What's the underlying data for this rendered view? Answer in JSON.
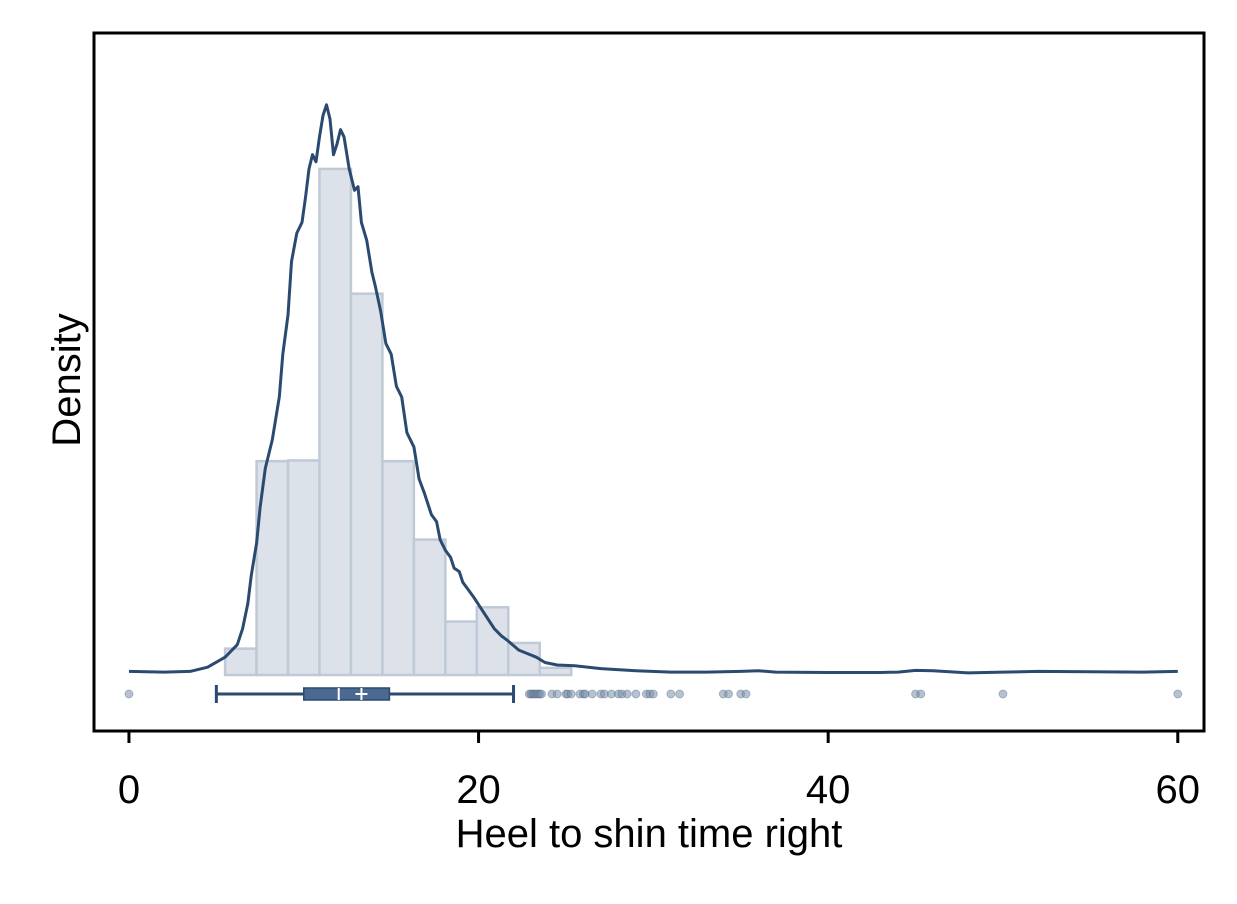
{
  "chart_data": {
    "type": "histogram",
    "title": "",
    "xlabel": "Heel to shin time right",
    "ylabel": "Density",
    "xlim": [
      -2,
      61.5
    ],
    "xticks": [
      0,
      20,
      40,
      60
    ],
    "xtick_labels": [
      "0",
      "20",
      "40",
      "60"
    ],
    "y_axis_ticks_shown": false,
    "grid": false,
    "legend": "none",
    "histogram": {
      "bin_edges": [
        5.5,
        7.3,
        9.1,
        10.9,
        12.7,
        14.5,
        16.3,
        18.1,
        19.9,
        21.7,
        23.5,
        25.3
      ],
      "density": [
        0.0074,
        0.06,
        0.0602,
        0.142,
        0.107,
        0.06,
        0.038,
        0.015,
        0.019,
        0.009,
        0.002
      ],
      "color": "#dde2ea",
      "edge_color": "#bfcad6"
    },
    "kde": {
      "x": [
        0,
        2,
        3.5,
        4.5,
        5.5,
        6.2,
        6.5,
        6.8,
        7.0,
        7.3,
        7.5,
        7.8,
        8.2,
        8.6,
        8.8,
        9.1,
        9.3,
        9.6,
        9.9,
        10.1,
        10.3,
        10.5,
        10.7,
        10.9,
        11.1,
        11.3,
        11.5,
        11.7,
        11.9,
        12.1,
        12.3,
        12.6,
        12.9,
        13.1,
        13.3,
        13.6,
        13.9,
        14.1,
        14.4,
        14.7,
        15.0,
        15.3,
        15.6,
        15.9,
        16.3,
        16.6,
        16.9,
        17.1,
        17.3,
        17.6,
        17.8,
        18.1,
        18.4,
        18.6,
        18.9,
        19.1,
        19.4,
        19.7,
        20.1,
        20.5,
        20.9,
        21.3,
        21.7,
        22.3,
        22.8,
        23.3,
        23.8,
        24.5,
        25.5,
        27,
        29,
        31,
        33,
        35,
        36,
        37,
        40,
        43,
        44,
        45,
        46,
        48,
        50,
        52,
        55,
        58,
        60
      ],
      "y": [
        0.001,
        0.0008,
        0.001,
        0.0022,
        0.005,
        0.0085,
        0.013,
        0.02,
        0.028,
        0.037,
        0.047,
        0.058,
        0.066,
        0.078,
        0.09,
        0.101,
        0.116,
        0.124,
        0.127,
        0.134,
        0.142,
        0.146,
        0.144,
        0.151,
        0.157,
        0.16,
        0.156,
        0.146,
        0.149,
        0.153,
        0.151,
        0.142,
        0.136,
        0.137,
        0.127,
        0.122,
        0.113,
        0.109,
        0.102,
        0.093,
        0.09,
        0.081,
        0.078,
        0.068,
        0.064,
        0.055,
        0.051,
        0.048,
        0.045,
        0.043,
        0.038,
        0.035,
        0.033,
        0.03,
        0.029,
        0.026,
        0.024,
        0.022,
        0.019,
        0.016,
        0.013,
        0.011,
        0.0095,
        0.007,
        0.006,
        0.005,
        0.0035,
        0.0028,
        0.0026,
        0.0018,
        0.0012,
        0.0008,
        0.0008,
        0.001,
        0.0012,
        0.0008,
        0.0007,
        0.0007,
        0.0008,
        0.0013,
        0.0012,
        0.0006,
        0.0008,
        0.001,
        0.0009,
        0.0008,
        0.001
      ],
      "color": "#2b4a6f"
    },
    "boxplot": {
      "whisker_low": 5.0,
      "q1": 10.0,
      "median": 12.0,
      "mean": 13.3,
      "q3": 14.9,
      "whisker_high": 22.0,
      "color": "#2b4a6f"
    },
    "outliers": [
      0,
      22.9,
      23.0,
      23.1,
      23.2,
      23.3,
      23.4,
      23.5,
      23.6,
      24.2,
      24.5,
      25.0,
      25.1,
      25.3,
      25.8,
      26.0,
      26.1,
      26.5,
      27.0,
      27.2,
      27.6,
      28.0,
      28.2,
      28.5,
      29.0,
      29.6,
      29.8,
      30.0,
      31.0,
      31.5,
      34.0,
      34.3,
      35.0,
      35.3,
      45.0,
      45.3,
      50.0,
      60.0
    ],
    "ylim": [
      0,
      0.172
    ]
  }
}
